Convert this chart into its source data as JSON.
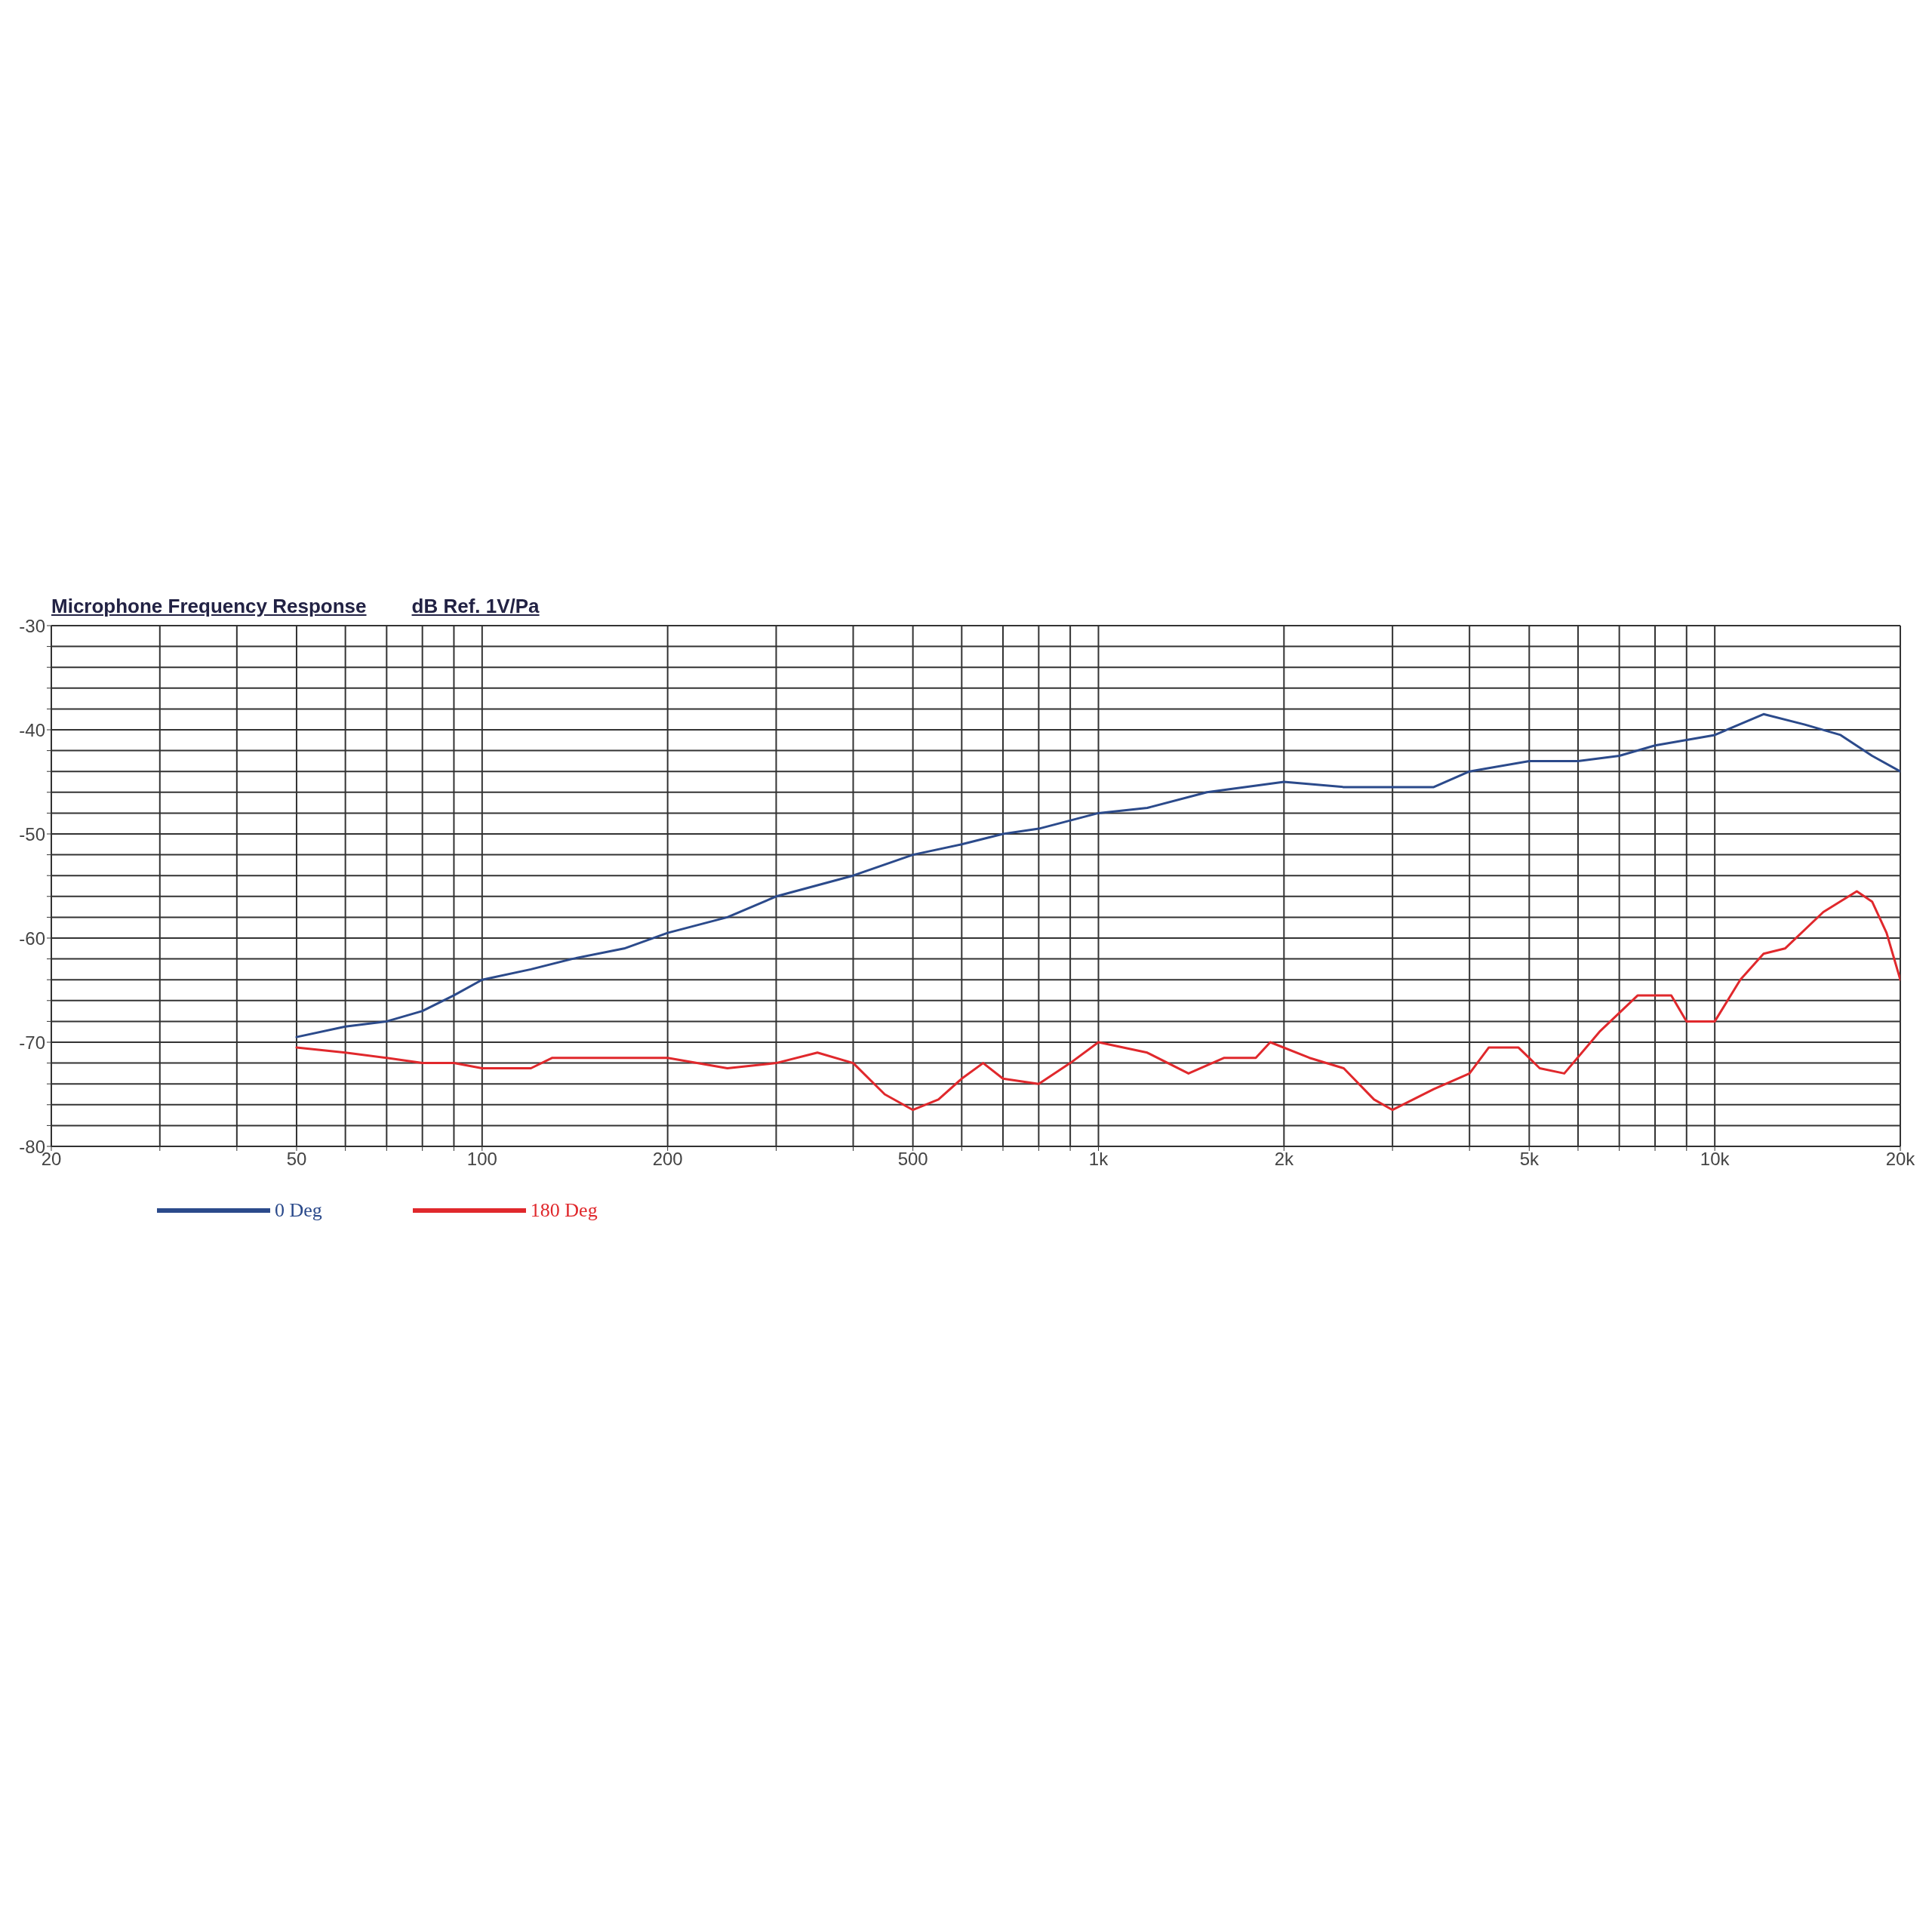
{
  "chart_data": {
    "type": "line",
    "title": "Microphone Frequency Response",
    "subtitle": "dB Ref. 1V/Pa",
    "log": "x",
    "grid": true,
    "legend": "bottom",
    "marker": "none",
    "line_style": "solid",
    "xlim": [
      20,
      20000
    ],
    "xticks": [
      20,
      {
        "value": 30,
        "label": null
      },
      {
        "value": 40,
        "label": null
      },
      50,
      {
        "value": 60,
        "label": null
      },
      {
        "value": 70,
        "label": null
      },
      {
        "value": 80,
        "label": null
      },
      {
        "value": 90,
        "label": null
      },
      100,
      200,
      {
        "value": 300,
        "label": null
      },
      {
        "value": 400,
        "label": null
      },
      500,
      {
        "value": 600,
        "label": null
      },
      {
        "value": 700,
        "label": null
      },
      {
        "value": 800,
        "label": null
      },
      {
        "value": 900,
        "label": null
      },
      {
        "value": 1000,
        "label": "1k"
      },
      {
        "value": 2000,
        "label": "2k"
      },
      {
        "value": 3000,
        "label": null
      },
      {
        "value": 4000,
        "label": null
      },
      {
        "value": 5000,
        "label": "5k"
      },
      {
        "value": 6000,
        "label": null
      },
      {
        "value": 7000,
        "label": null
      },
      {
        "value": 8000,
        "label": null
      },
      {
        "value": 9000,
        "label": null
      },
      {
        "value": 10000,
        "label": "10k"
      },
      {
        "value": 20000,
        "label": "20k"
      }
    ],
    "ylim": [
      -80,
      -30
    ],
    "yticks": [
      -80,
      {
        "value": -78,
        "label": null
      },
      {
        "value": -76,
        "label": null
      },
      {
        "value": -74,
        "label": null
      },
      {
        "value": -72,
        "label": null
      },
      -70,
      {
        "value": -68,
        "label": null
      },
      {
        "value": -66,
        "label": null
      },
      {
        "value": -64,
        "label": null
      },
      {
        "value": -62,
        "label": null
      },
      -60,
      {
        "value": -58,
        "label": null
      },
      {
        "value": -56,
        "label": null
      },
      {
        "value": -54,
        "label": null
      },
      {
        "value": -52,
        "label": null
      },
      -50,
      {
        "value": -48,
        "label": null
      },
      {
        "value": -46,
        "label": null
      },
      {
        "value": -44,
        "label": null
      },
      {
        "value": -42,
        "label": null
      },
      -40,
      {
        "value": -38,
        "label": null
      },
      {
        "value": -36,
        "label": null
      },
      {
        "value": -34,
        "label": null
      },
      {
        "value": -32,
        "label": null
      },
      -30
    ],
    "series": [
      {
        "name": "0 Deg",
        "color": "#2b4a8b",
        "x": [
          50,
          60,
          70,
          80,
          90,
          100,
          120,
          140,
          170,
          200,
          250,
          300,
          400,
          500,
          600,
          700,
          800,
          1000,
          1200,
          1500,
          2000,
          2500,
          3000,
          3500,
          4000,
          5000,
          6000,
          7000,
          8000,
          10000,
          12000,
          14000,
          16000,
          18000,
          20000
        ],
        "values": [
          -69.5,
          -68.5,
          -68,
          -67,
          -65.5,
          -64,
          -63,
          -62,
          -61,
          -59.5,
          -58,
          -56,
          -54,
          -52,
          -51,
          -50,
          -49.5,
          -48,
          -47.5,
          -46,
          -45,
          -45.5,
          -45.5,
          -45.5,
          -44,
          -43,
          -43,
          -42.5,
          -41.5,
          -40.5,
          -38.5,
          -39.5,
          -40.5,
          -42.5,
          -44
        ]
      },
      {
        "name": "180 Deg",
        "color": "#e0282c",
        "x": [
          50,
          60,
          70,
          80,
          90,
          100,
          120,
          130,
          160,
          200,
          250,
          300,
          350,
          400,
          450,
          500,
          550,
          600,
          650,
          700,
          800,
          900,
          1000,
          1200,
          1400,
          1600,
          1800,
          1900,
          2200,
          2500,
          2800,
          3000,
          3500,
          4000,
          4300,
          4800,
          5200,
          5700,
          6500,
          7500,
          8500,
          9000,
          10000,
          11000,
          12000,
          13000,
          15000,
          17000,
          18000,
          19000,
          20000
        ],
        "values": [
          -70.5,
          -71,
          -71.5,
          -72,
          -72,
          -72.5,
          -72.5,
          -71.5,
          -71.5,
          -71.5,
          -72.5,
          -72,
          -71,
          -72,
          -75,
          -76.5,
          -75.5,
          -73.5,
          -72,
          -73.5,
          -74,
          -72,
          -70,
          -71,
          -73,
          -71.5,
          -71.5,
          -70,
          -71.5,
          -72.5,
          -75.5,
          -76.5,
          -74.5,
          -73,
          -70.5,
          -70.5,
          -72.5,
          -73,
          -69,
          -65.5,
          -65.5,
          -68,
          -68,
          -64,
          -61.5,
          -61,
          -57.5,
          -55.5,
          -56.5,
          -59.5,
          -64
        ]
      }
    ]
  }
}
